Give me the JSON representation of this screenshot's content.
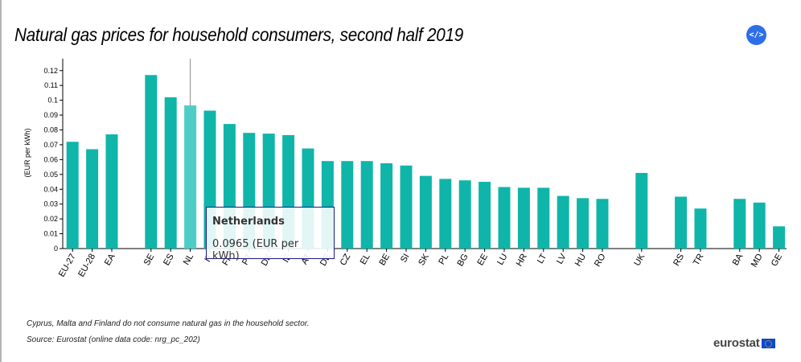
{
  "header": {
    "title": "Natural gas prices for household consumers, second half 2019",
    "embed_label": "</>",
    "embed_icon": "code-embed-icon"
  },
  "tooltip": {
    "title": "Netherlands",
    "value_text": "0.0965 (EUR per kWh)"
  },
  "footer": {
    "note": "Cyprus, Malta and Finland do not consume natural gas in the household sector.",
    "source": "Source: Eurostat (online data code: nrg_pc_202)",
    "logo_text": "eurostat",
    "flag_icon": "eu-flag-icon"
  },
  "colors": {
    "bar": "#0fb5a9",
    "bar_highlight": "#4ecdc6"
  },
  "chart_data": {
    "type": "bar",
    "title": "Natural gas prices for household consumers, second half 2019",
    "xlabel": "",
    "ylabel": "(EUR per kWh)",
    "ylim": [
      0,
      0.128
    ],
    "yticks": [
      0,
      0.01,
      0.02,
      0.03,
      0.04,
      0.05,
      0.06,
      0.07,
      0.08,
      0.09,
      0.1,
      0.11,
      0.12
    ],
    "ytick_labels": [
      "0",
      "0.01",
      "0.02",
      "0.03",
      "0.04",
      "0.05",
      "0.06",
      "0.07",
      "0.08",
      "0.09",
      "0.1",
      "0.11",
      "0.12"
    ],
    "grid": false,
    "highlighted": "NL",
    "categories": [
      "EU-27",
      "EU-28",
      "EA",
      "",
      "SE",
      "ES",
      "NL",
      "IT",
      "FR",
      "PT",
      "DK",
      "IE",
      "AT",
      "DE",
      "CZ",
      "EL",
      "BE",
      "SI",
      "SK",
      "PL",
      "BG",
      "EE",
      "LU",
      "HR",
      "LT",
      "LV",
      "HU",
      "RO",
      "",
      "UK",
      "",
      "RS",
      "TR",
      "",
      "BA",
      "MD",
      "GE"
    ],
    "values": [
      0.072,
      0.067,
      0.077,
      null,
      0.117,
      0.102,
      0.0965,
      0.093,
      0.084,
      0.078,
      0.0775,
      0.0765,
      0.0675,
      0.059,
      0.059,
      0.059,
      0.0575,
      0.056,
      0.049,
      0.047,
      0.046,
      0.045,
      0.0415,
      0.041,
      0.041,
      0.0355,
      0.034,
      0.0335,
      null,
      0.051,
      null,
      0.035,
      0.027,
      null,
      0.0335,
      0.031,
      0.015
    ]
  }
}
